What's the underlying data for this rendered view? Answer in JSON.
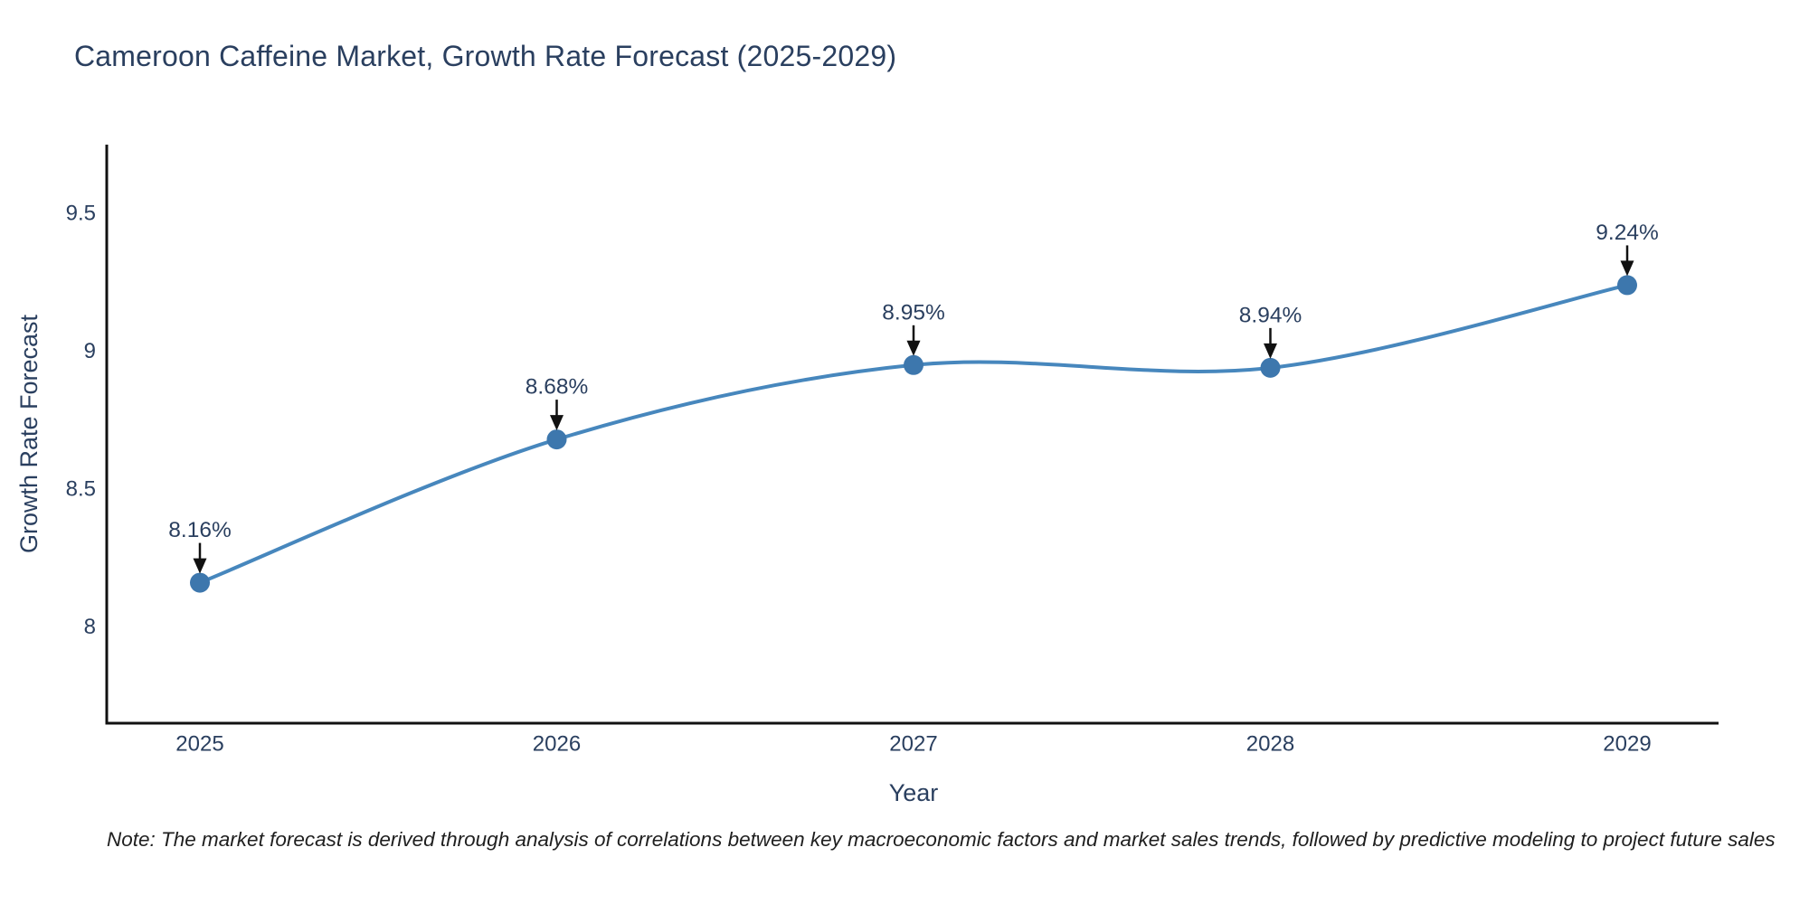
{
  "header": {
    "title": "Cameroon Caffeine Market, Growth Rate Forecast (2025-2029)"
  },
  "chart_data": {
    "type": "line",
    "title": "Cameroon Caffeine Market, Growth Rate Forecast (2025-2029)",
    "x": [
      2025,
      2026,
      2027,
      2028,
      2029
    ],
    "x_tick_labels": [
      "2025",
      "2026",
      "2027",
      "2028",
      "2029"
    ],
    "series": [
      {
        "name": "Growth Rate Forecast",
        "values": [
          8.16,
          8.68,
          8.95,
          8.94,
          9.24
        ]
      }
    ],
    "point_labels": [
      "8.16%",
      "8.68%",
      "8.95%",
      "8.94%",
      "9.24%"
    ],
    "xlabel": "Year",
    "ylabel": "Growth Rate Forecast",
    "yticks": [
      8,
      8.5,
      9,
      9.5
    ],
    "ytick_labels": [
      "8",
      "8.5",
      "9",
      "9.5"
    ],
    "ylim": [
      7.65,
      9.75
    ],
    "grid": false,
    "legend_position": "none",
    "line_shape": "spline",
    "annotation_arrows": true,
    "colors": {
      "line": "#4787bd",
      "marker": "#3d77ad",
      "text": "#2a3f5f",
      "axis": "#111111",
      "arrow": "#111111",
      "background": "#ffffff"
    }
  },
  "footnote": {
    "text": "Note: The market forecast is derived through analysis of correlations between key macroeconomic factors and market sales trends, followed by predictive modeling to project future sales"
  }
}
